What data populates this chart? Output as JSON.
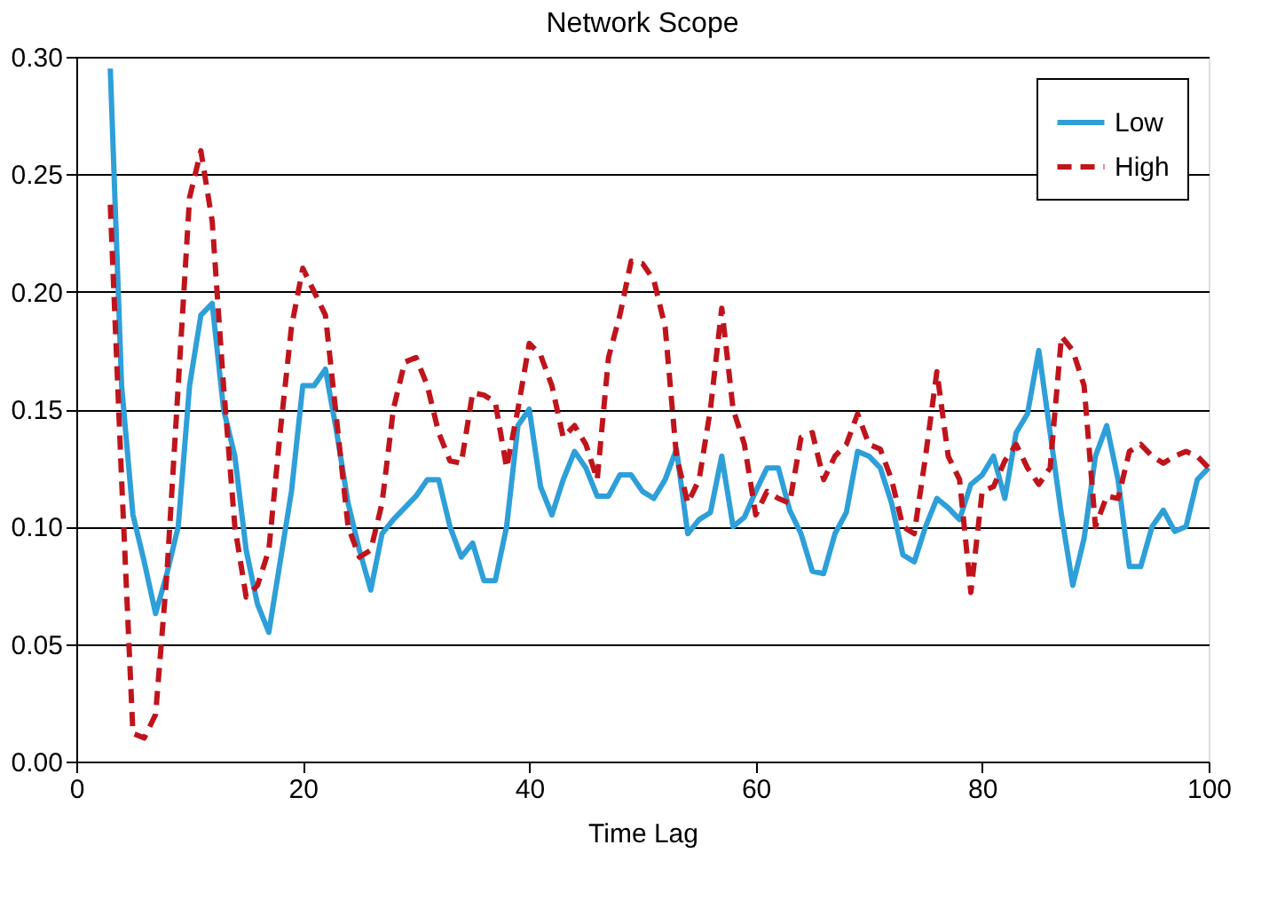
{
  "chart_data": {
    "type": "line",
    "title": "Network Scope",
    "xlabel": "Time Lag",
    "x": [
      3,
      4,
      5,
      6,
      7,
      8,
      9,
      10,
      11,
      12,
      13,
      14,
      15,
      16,
      17,
      18,
      19,
      20,
      21,
      22,
      23,
      24,
      25,
      26,
      27,
      28,
      29,
      30,
      31,
      32,
      33,
      34,
      35,
      36,
      37,
      38,
      39,
      40,
      41,
      42,
      43,
      44,
      45,
      46,
      47,
      48,
      49,
      50,
      51,
      52,
      53,
      54,
      55,
      56,
      57,
      58,
      59,
      60,
      61,
      62,
      63,
      64,
      65,
      66,
      67,
      68,
      69,
      70,
      71,
      72,
      73,
      74,
      75,
      76,
      77,
      78,
      79,
      80,
      81,
      82,
      83,
      84,
      85,
      86,
      87,
      88,
      89,
      90,
      91,
      92,
      93,
      94,
      95,
      96,
      97,
      98,
      99,
      100
    ],
    "series": [
      {
        "name": "Low",
        "color": "#2e9fd8",
        "line_style": "solid",
        "values": [
          0.295,
          0.16,
          0.105,
          0.085,
          0.063,
          0.08,
          0.1,
          0.16,
          0.19,
          0.195,
          0.15,
          0.13,
          0.09,
          0.067,
          0.055,
          0.085,
          0.115,
          0.16,
          0.16,
          0.167,
          0.14,
          0.11,
          0.09,
          0.073,
          0.097,
          0.103,
          0.108,
          0.113,
          0.12,
          0.12,
          0.1,
          0.087,
          0.093,
          0.077,
          0.077,
          0.1,
          0.143,
          0.15,
          0.117,
          0.105,
          0.12,
          0.132,
          0.125,
          0.113,
          0.113,
          0.122,
          0.122,
          0.115,
          0.112,
          0.12,
          0.133,
          0.097,
          0.103,
          0.106,
          0.13,
          0.1,
          0.104,
          0.115,
          0.125,
          0.125,
          0.107,
          0.097,
          0.081,
          0.08,
          0.097,
          0.106,
          0.132,
          0.13,
          0.125,
          0.11,
          0.088,
          0.085,
          0.1,
          0.112,
          0.108,
          0.103,
          0.118,
          0.122,
          0.13,
          0.112,
          0.14,
          0.148,
          0.175,
          0.14,
          0.105,
          0.075,
          0.095,
          0.13,
          0.143,
          0.12,
          0.083,
          0.083,
          0.1,
          0.107,
          0.098,
          0.1,
          0.12,
          0.125
        ]
      },
      {
        "name": "High",
        "color": "#c0141c",
        "line_style": "dashed",
        "values": [
          0.237,
          0.12,
          0.012,
          0.01,
          0.02,
          0.08,
          0.16,
          0.24,
          0.26,
          0.23,
          0.16,
          0.1,
          0.07,
          0.075,
          0.09,
          0.14,
          0.185,
          0.21,
          0.2,
          0.19,
          0.145,
          0.1,
          0.087,
          0.09,
          0.11,
          0.15,
          0.17,
          0.172,
          0.16,
          0.14,
          0.128,
          0.127,
          0.157,
          0.156,
          0.153,
          0.125,
          0.15,
          0.178,
          0.173,
          0.16,
          0.138,
          0.143,
          0.135,
          0.12,
          0.172,
          0.19,
          0.213,
          0.212,
          0.205,
          0.185,
          0.13,
          0.11,
          0.12,
          0.15,
          0.193,
          0.15,
          0.135,
          0.105,
          0.115,
          0.112,
          0.11,
          0.138,
          0.14,
          0.12,
          0.13,
          0.135,
          0.148,
          0.135,
          0.133,
          0.12,
          0.1,
          0.097,
          0.13,
          0.166,
          0.13,
          0.12,
          0.072,
          0.115,
          0.117,
          0.128,
          0.135,
          0.125,
          0.118,
          0.125,
          0.181,
          0.175,
          0.16,
          0.1,
          0.113,
          0.112,
          0.132,
          0.135,
          0.13,
          0.127,
          0.13,
          0.132,
          0.13,
          0.125
        ]
      }
    ],
    "xlim": [
      0,
      100
    ],
    "xticks": [
      0,
      20,
      40,
      60,
      80,
      100
    ],
    "ylim": [
      0,
      0.3
    ],
    "yticks": [
      {
        "value": 0,
        "label": "0.00"
      },
      {
        "value": 0.05,
        "label": "0.05"
      },
      {
        "value": 0.1,
        "label": "0.10"
      },
      {
        "value": 0.15,
        "label": "0.15"
      },
      {
        "value": 0.2,
        "label": "0.20"
      },
      {
        "value": 0.25,
        "label": "0.25"
      },
      {
        "value": 0.3,
        "label": "0.30"
      }
    ],
    "grid": "y",
    "legend": "top right",
    "marker": "none"
  }
}
